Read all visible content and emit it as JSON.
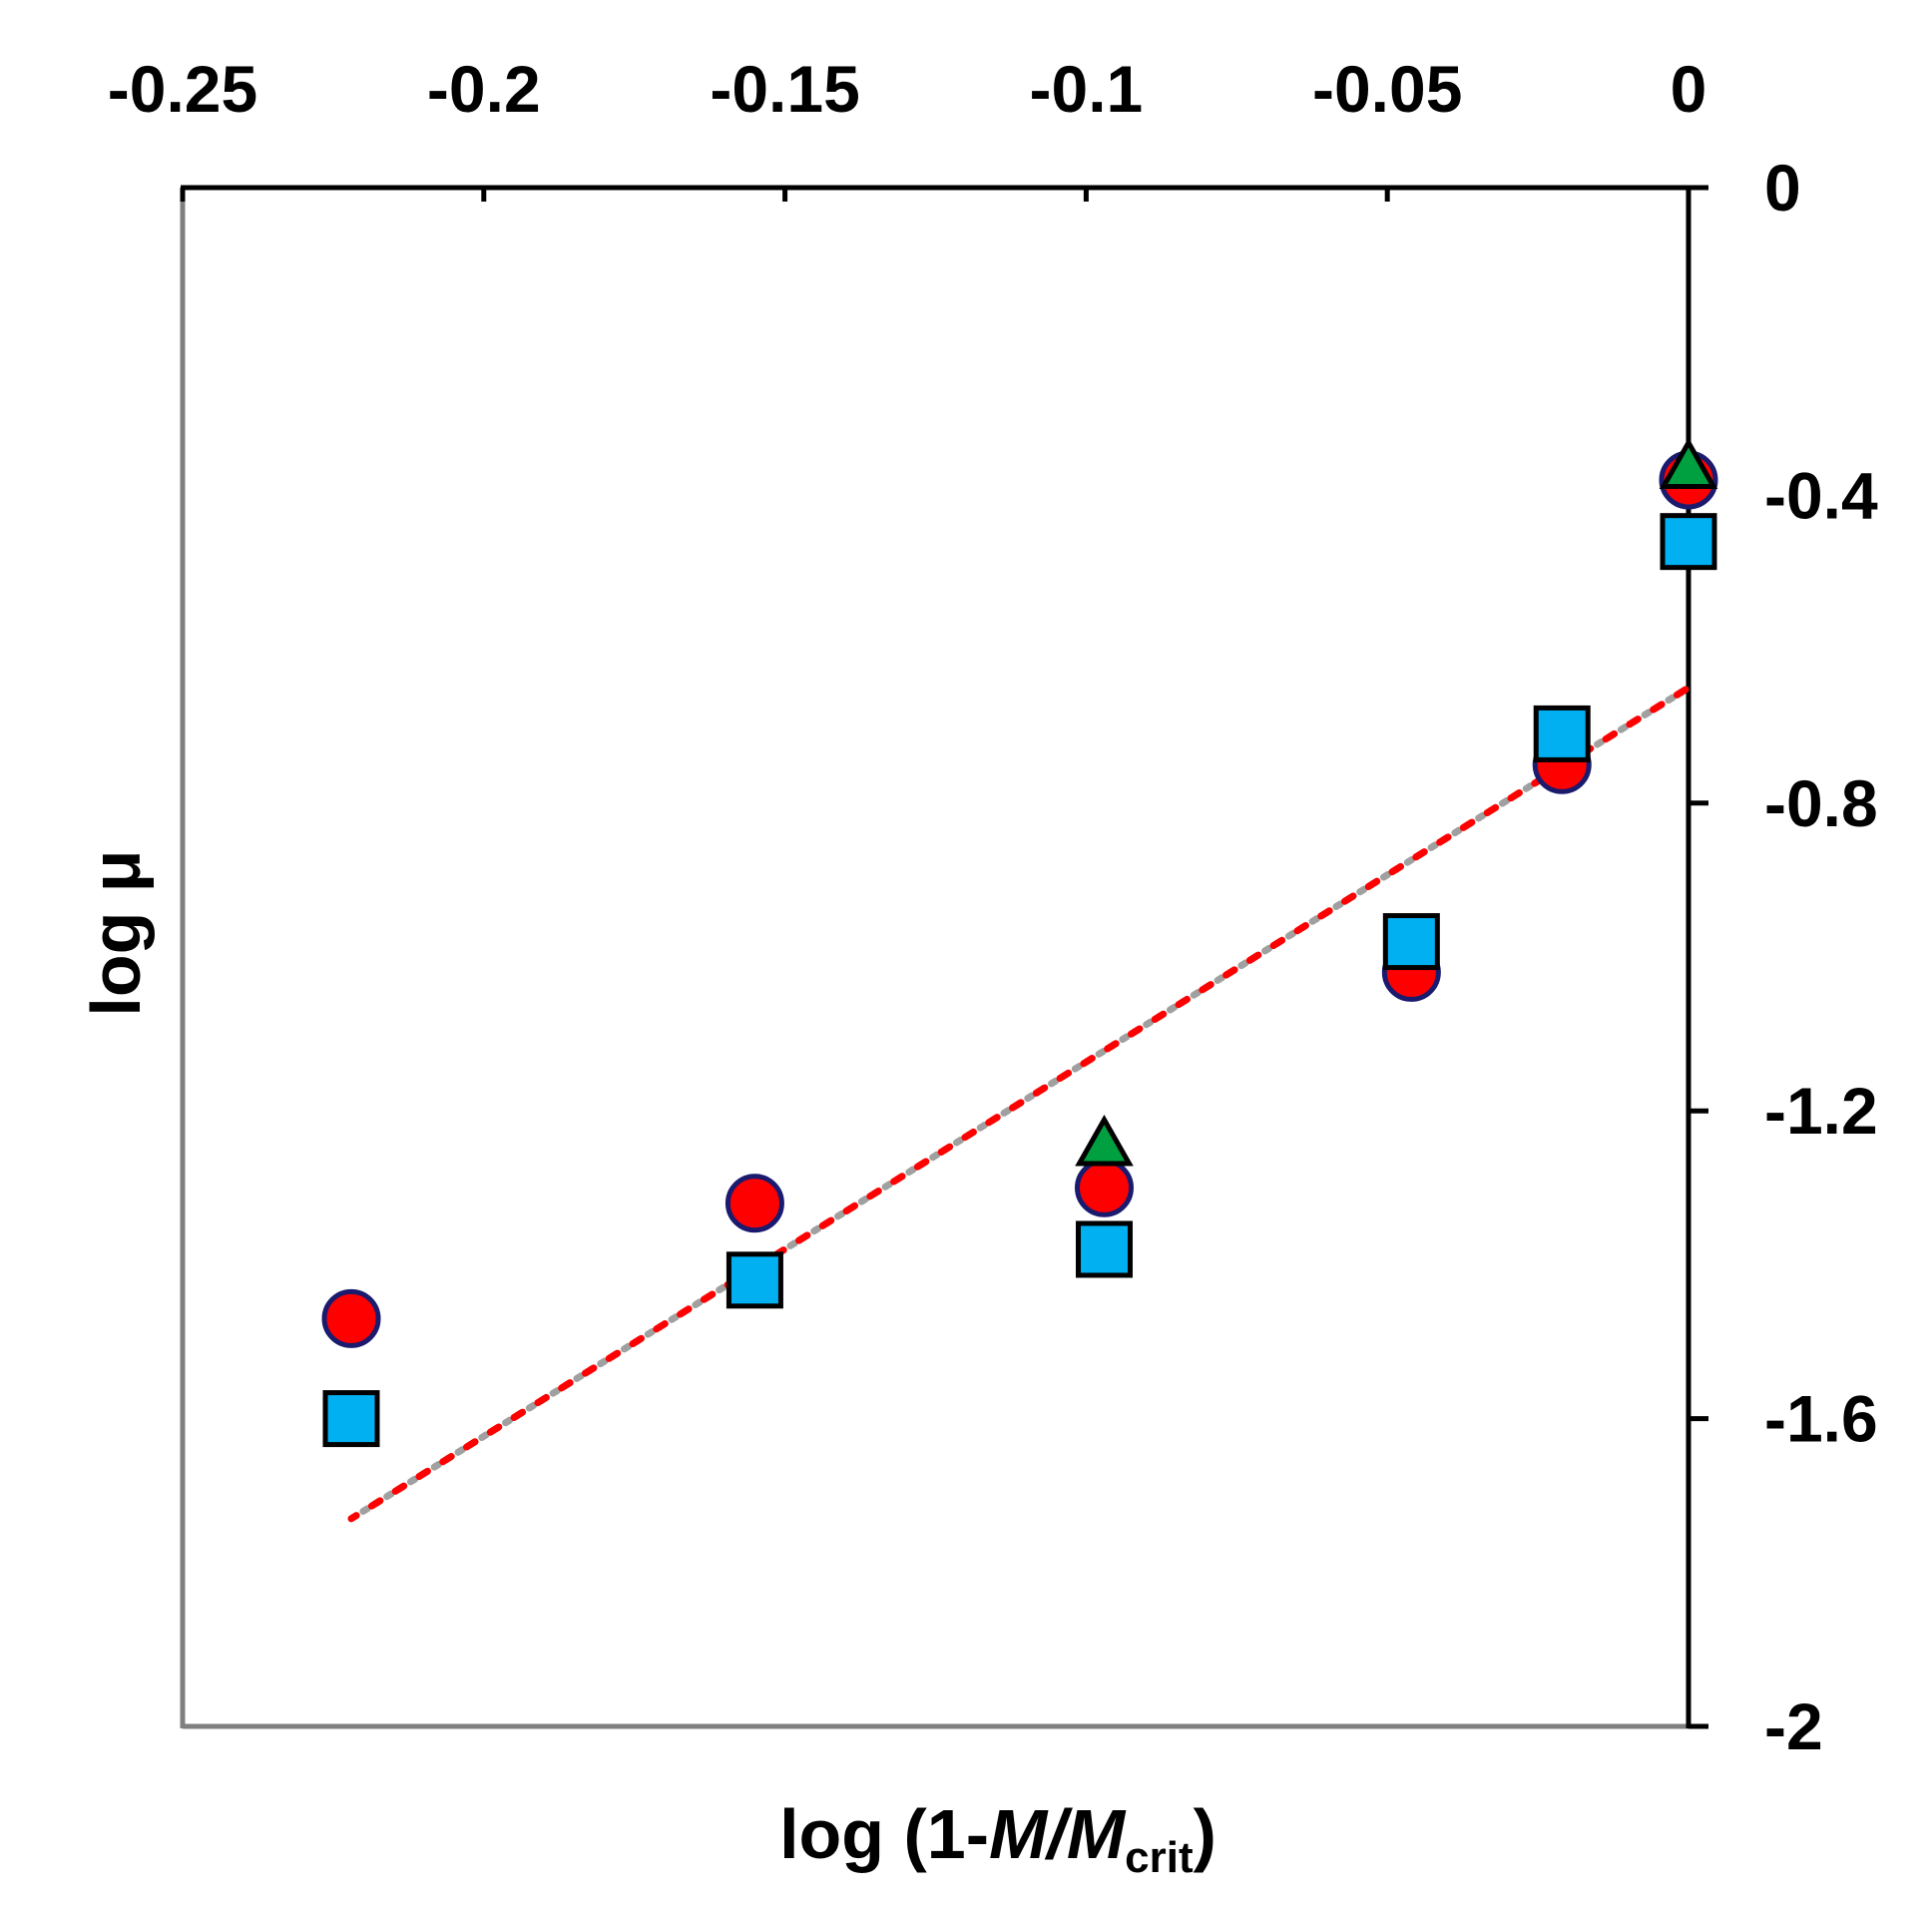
{
  "chart_data": {
    "type": "scatter",
    "title": "",
    "xlabel": "log (1-M/M_crit)",
    "xlabel_parts": {
      "prefix": "log (1-",
      "italic1": "M",
      "slash": "/",
      "italic2": "M",
      "subscript": "crit",
      "suffix": ")"
    },
    "ylabel": "log μ",
    "x_axis_position": "top",
    "y_axis_position": "right",
    "xlim": [
      -0.25,
      0
    ],
    "ylim": [
      -2,
      0
    ],
    "x_ticks": [
      -0.25,
      -0.2,
      -0.15,
      -0.1,
      -0.05,
      0
    ],
    "x_tick_labels": [
      "-0.25",
      "-0.2",
      "-0.15",
      "-0.1",
      "-0.05",
      "0"
    ],
    "y_ticks": [
      0,
      -0.4,
      -0.8,
      -1.2,
      -1.6,
      -2
    ],
    "y_tick_labels": [
      "0",
      "-0.4",
      "-0.8",
      "-1.2",
      "-1.6",
      "-2"
    ],
    "grid": false,
    "legend": "none",
    "series": [
      {
        "name": "circles",
        "marker": "circle",
        "color": "#ff0000",
        "edge_color": "#1a1a6e",
        "x": [
          -0.222,
          -0.155,
          -0.097,
          -0.046,
          -0.021,
          0.0
        ],
        "y": [
          -1.47,
          -1.32,
          -1.3,
          -1.02,
          -0.75,
          -0.38
        ]
      },
      {
        "name": "squares",
        "marker": "square",
        "color": "#00b0f0",
        "edge_color": "#000000",
        "x": [
          -0.222,
          -0.155,
          -0.097,
          -0.046,
          -0.021,
          0.0
        ],
        "y": [
          -1.6,
          -1.42,
          -1.38,
          -0.98,
          -0.71,
          -0.46
        ]
      },
      {
        "name": "triangles",
        "marker": "triangle",
        "color": "#00a040",
        "edge_color": "#000000",
        "x": [
          -0.097,
          0.0
        ],
        "y": [
          -1.24,
          -0.36
        ]
      }
    ],
    "fit_line": {
      "style": "dotted",
      "colors": [
        "#ff0000",
        "#a0a0a0"
      ],
      "x": [
        -0.222,
        0.0
      ],
      "y": [
        -1.73,
        -0.65
      ]
    }
  }
}
